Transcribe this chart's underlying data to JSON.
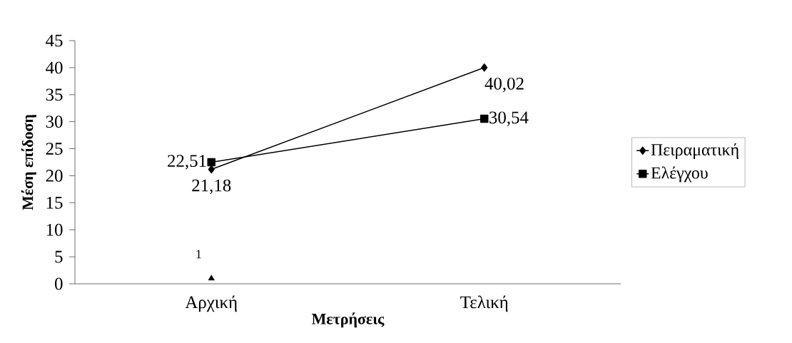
{
  "chart_data": {
    "type": "line",
    "xlabel": "Μετρήσεις",
    "ylabel": "Μέση επίδοση",
    "categories": [
      "Αρχική",
      "Τελική"
    ],
    "series": [
      {
        "name": "Πειραματική",
        "color": "#000000",
        "marker": "diamond",
        "values": [
          21.18,
          40.02
        ],
        "value_labels": [
          "21,18",
          "40,02"
        ]
      },
      {
        "name": "Ελέγχου",
        "color": "#000000",
        "marker": "square",
        "values": [
          22.51,
          30.54
        ],
        "value_labels": [
          "22,51",
          "30,54"
        ]
      },
      {
        "type": "scatter",
        "color": "#000000",
        "marker": "triangle",
        "values": [
          1,
          null
        ],
        "value_labels": [
          "1",
          null
        ]
      }
    ],
    "ylim": [
      0,
      45
    ],
    "yticks": [
      0,
      5,
      10,
      15,
      20,
      25,
      30,
      35,
      40,
      45
    ],
    "grid": false,
    "legend": "right",
    "line_style": "solid"
  }
}
